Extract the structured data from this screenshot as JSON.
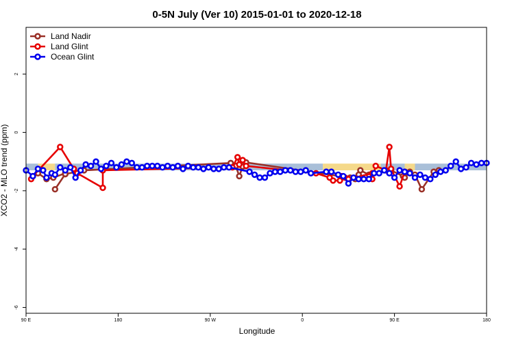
{
  "chart_data": {
    "type": "line",
    "title": "0-5N July (Ver 10)   2015-01-01 to 2020-12-18",
    "xlabel": "Longitude",
    "ylabel": "XCO2 - MLO trend (ppm)",
    "xlim": [
      -90,
      180
    ],
    "ylim": [
      -6.2,
      3.6
    ],
    "x_ticks": [
      {
        "value": -90,
        "label": "90 E"
      },
      {
        "value": -36,
        "label": "180"
      },
      {
        "value": 18,
        "label": "90 W"
      },
      {
        "value": 72,
        "label": "0"
      },
      {
        "value": 126,
        "label": "90 E"
      },
      {
        "value": 180,
        "label": "180"
      }
    ],
    "y_ticks": [
      {
        "value": 2,
        "label": "2"
      },
      {
        "value": 0,
        "label": "0"
      },
      {
        "value": -2,
        "label": "-2"
      },
      {
        "value": -4,
        "label": "-4"
      },
      {
        "value": -6,
        "label": "-6"
      }
    ],
    "grid": false,
    "legend_position": "top-left",
    "background_bands": [
      {
        "type": "ocean",
        "color": "#a9bfd8",
        "x": [
          -90,
          -83
        ],
        "y": [
          -1.3,
          -1.07
        ]
      },
      {
        "type": "land",
        "color": "#f5d98a",
        "x": [
          -83,
          -73
        ],
        "y": [
          -1.3,
          -1.07
        ]
      },
      {
        "type": "ocean",
        "color": "#a9bfd8",
        "x": [
          -73,
          29
        ],
        "y": [
          -1.3,
          -1.07
        ]
      },
      {
        "type": "land",
        "color": "#f5d98a",
        "x": [
          29,
          37
        ],
        "y": [
          -1.3,
          -1.07
        ]
      },
      {
        "type": "ocean",
        "color": "#a9bfd8",
        "x": [
          37,
          84
        ],
        "y": [
          -1.3,
          -1.07
        ]
      },
      {
        "type": "land",
        "color": "#f5d98a",
        "x": [
          84,
          118
        ],
        "y": [
          -1.3,
          -1.07
        ]
      },
      {
        "type": "ocean",
        "color": "#a9bfd8",
        "x": [
          118,
          132
        ],
        "y": [
          -1.3,
          -1.07
        ]
      },
      {
        "type": "land",
        "color": "#f5d98a",
        "x": [
          132,
          138
        ],
        "y": [
          -1.3,
          -1.07
        ]
      },
      {
        "type": "ocean",
        "color": "#a9bfd8",
        "x": [
          138,
          180
        ],
        "y": [
          -1.3,
          -1.07
        ]
      }
    ],
    "series": [
      {
        "name": "Land Nadir",
        "color": "#9a3128",
        "x": [
          -83,
          -78,
          -74,
          -67,
          -67,
          -73,
          -67,
          -56,
          30,
          33,
          35,
          37,
          39,
          100,
          103,
          105,
          106,
          111,
          124,
          131,
          132,
          135,
          138,
          142,
          149,
          152
        ],
        "y": [
          -1.4,
          -1.6,
          -1.55,
          -1.4,
          -1.43,
          -1.95,
          -1.43,
          -1.3,
          -1.05,
          -1.15,
          -1.5,
          -1.17,
          -1.03,
          -1.55,
          -1.6,
          -1.45,
          -1.3,
          -1.45,
          -1.3,
          -1.5,
          -1.55,
          -1.35,
          -1.45,
          -1.95,
          -1.35,
          -1.3
        ]
      },
      {
        "name": "Land Glint",
        "color": "#e60000",
        "x": [
          -87,
          -86,
          -70,
          -62,
          -60,
          -45,
          -45,
          31,
          34,
          35,
          37,
          39,
          80,
          88,
          90,
          94,
          95,
          97,
          99,
          113,
          113,
          115,
          121,
          123,
          124,
          129,
          132
        ],
        "y": [
          -1.6,
          -1.5,
          -0.5,
          -1.25,
          -1.4,
          -1.9,
          -1.3,
          -1.2,
          -0.85,
          -1.1,
          -0.95,
          -1.15,
          -1.4,
          -1.55,
          -1.65,
          -1.65,
          -1.5,
          -1.55,
          -1.6,
          -1.4,
          -1.6,
          -1.15,
          -1.3,
          -0.5,
          -1.25,
          -1.85,
          -1.35
        ]
      },
      {
        "name": "Ocean Glint",
        "color": "#0000ee",
        "x": [
          -90,
          -86,
          -83,
          -80,
          -78,
          -75,
          -73,
          -70,
          -67,
          -64,
          -61,
          -58,
          -55,
          -52,
          -49,
          -46,
          -43,
          -40,
          -37,
          -34,
          -31,
          -28,
          -25,
          -22,
          -19,
          -16,
          -13,
          -10,
          -7,
          -4,
          -1,
          2,
          5,
          8,
          11,
          14,
          17,
          20,
          23,
          26,
          29,
          41,
          44,
          47,
          50,
          53,
          56,
          59,
          62,
          65,
          68,
          71,
          74,
          77,
          86,
          89,
          93,
          96,
          99,
          102,
          105,
          108,
          111,
          114,
          117,
          120,
          123,
          126,
          129,
          132,
          135,
          138,
          141,
          144,
          147,
          150,
          153,
          156,
          159,
          162,
          165,
          168,
          171,
          174,
          177,
          180
        ],
        "y": [
          -1.3,
          -1.5,
          -1.25,
          -1.3,
          -1.55,
          -1.4,
          -1.45,
          -1.2,
          -1.3,
          -1.2,
          -1.55,
          -1.3,
          -1.1,
          -1.15,
          -1.0,
          -1.25,
          -1.15,
          -1.05,
          -1.2,
          -1.1,
          -1.0,
          -1.05,
          -1.2,
          -1.2,
          -1.15,
          -1.15,
          -1.15,
          -1.2,
          -1.15,
          -1.2,
          -1.15,
          -1.25,
          -1.15,
          -1.2,
          -1.2,
          -1.25,
          -1.2,
          -1.25,
          -1.25,
          -1.2,
          -1.2,
          -1.35,
          -1.45,
          -1.55,
          -1.55,
          -1.4,
          -1.35,
          -1.35,
          -1.3,
          -1.3,
          -1.35,
          -1.35,
          -1.3,
          -1.4,
          -1.35,
          -1.35,
          -1.45,
          -1.5,
          -1.75,
          -1.55,
          -1.6,
          -1.6,
          -1.6,
          -1.4,
          -1.4,
          -1.3,
          -1.4,
          -1.55,
          -1.3,
          -1.35,
          -1.4,
          -1.55,
          -1.45,
          -1.55,
          -1.6,
          -1.45,
          -1.35,
          -1.3,
          -1.15,
          -1.0,
          -1.25,
          -1.2,
          -1.05,
          -1.1,
          -1.05,
          -1.05
        ]
      }
    ]
  }
}
